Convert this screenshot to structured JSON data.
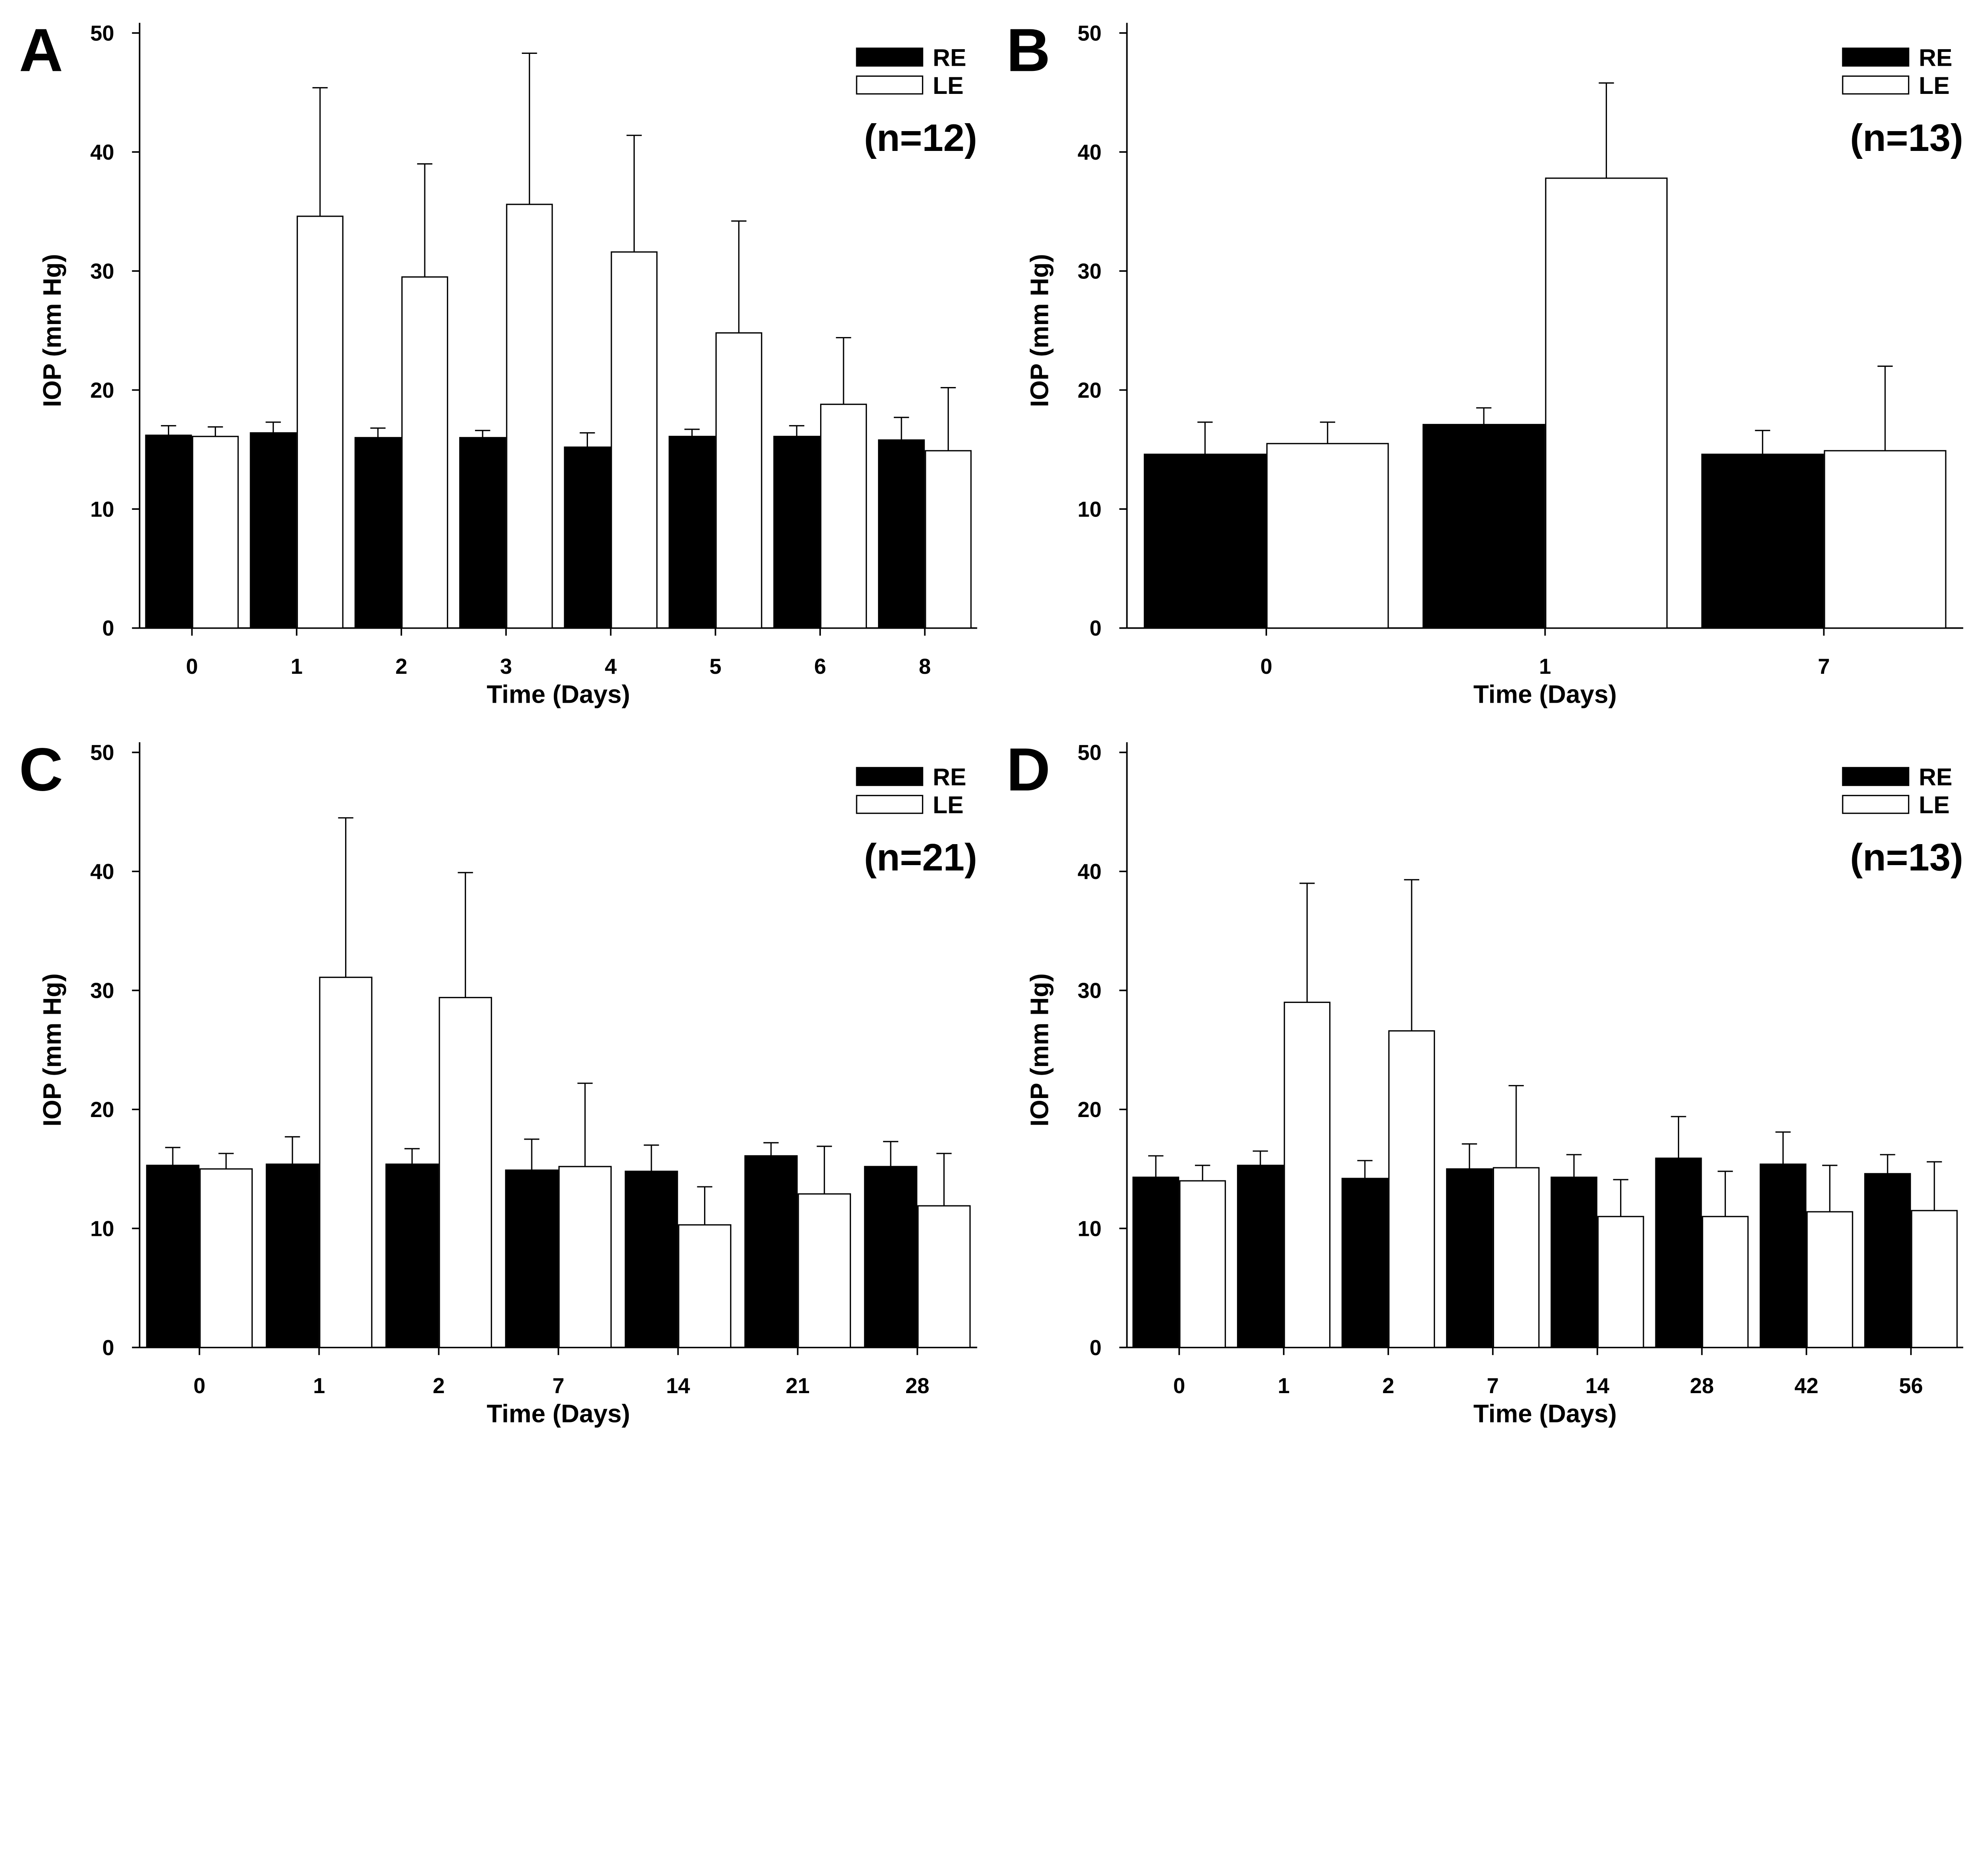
{
  "colors": {
    "RE": "#000000",
    "LE": "#ffffff",
    "axis": "#000000"
  },
  "chart_data": [
    {
      "panel": "A",
      "type": "bar",
      "n_label": "(n=12)",
      "xlabel": "Time (Days)",
      "ylabel": "IOP (mm Hg)",
      "ylim": [
        0,
        50
      ],
      "yticks": [
        0,
        10,
        20,
        30,
        40,
        50
      ],
      "legend_position": "top-right",
      "grid": false,
      "categories": [
        "0",
        "1",
        "2",
        "3",
        "4",
        "5",
        "6",
        "8"
      ],
      "series": [
        {
          "name": "RE",
          "values": [
            16.2,
            16.4,
            16.0,
            16.0,
            15.2,
            16.1,
            16.1,
            15.8
          ],
          "error_upper": [
            17.0,
            17.3,
            16.8,
            16.6,
            16.4,
            16.7,
            17.0,
            17.7
          ]
        },
        {
          "name": "LE",
          "values": [
            16.1,
            34.6,
            29.5,
            35.6,
            31.6,
            24.8,
            18.8,
            14.9
          ],
          "error_upper": [
            16.9,
            45.4,
            39.0,
            48.3,
            41.4,
            34.2,
            24.4,
            20.2
          ]
        }
      ]
    },
    {
      "panel": "B",
      "type": "bar",
      "n_label": "(n=13)",
      "xlabel": "Time (Days)",
      "ylabel": "IOP (mm Hg)",
      "ylim": [
        0,
        50
      ],
      "yticks": [
        0,
        10,
        20,
        30,
        40,
        50
      ],
      "legend_position": "top-right",
      "grid": false,
      "categories": [
        "0",
        "1",
        "7"
      ],
      "series": [
        {
          "name": "RE",
          "values": [
            14.6,
            17.1,
            14.6
          ],
          "error_upper": [
            17.3,
            18.5,
            16.6
          ]
        },
        {
          "name": "LE",
          "values": [
            15.5,
            37.8,
            14.9
          ],
          "error_upper": [
            17.3,
            45.8,
            22.0
          ]
        }
      ]
    },
    {
      "panel": "C",
      "type": "bar",
      "n_label": "(n=21)",
      "xlabel": "Time (Days)",
      "ylabel": "IOP (mm Hg)",
      "ylim": [
        0,
        50
      ],
      "yticks": [
        0,
        10,
        20,
        30,
        40,
        50
      ],
      "legend_position": "top-right",
      "grid": false,
      "categories": [
        "0",
        "1",
        "2",
        "7",
        "14",
        "21",
        "28"
      ],
      "series": [
        {
          "name": "RE",
          "values": [
            15.3,
            15.4,
            15.4,
            14.9,
            14.8,
            16.1,
            15.2
          ],
          "error_upper": [
            16.8,
            17.7,
            16.7,
            17.5,
            17.0,
            17.2,
            17.3
          ]
        },
        {
          "name": "LE",
          "values": [
            15.0,
            31.1,
            29.4,
            15.2,
            10.3,
            12.9,
            11.9
          ],
          "error_upper": [
            16.3,
            44.5,
            39.9,
            22.2,
            13.5,
            16.9,
            16.3
          ]
        }
      ]
    },
    {
      "panel": "D",
      "type": "bar",
      "n_label": "(n=13)",
      "xlabel": "Time (Days)",
      "ylabel": "IOP (mm Hg)",
      "ylim": [
        0,
        50
      ],
      "yticks": [
        0,
        10,
        20,
        30,
        40,
        50
      ],
      "legend_position": "top-right",
      "grid": false,
      "categories": [
        "0",
        "1",
        "2",
        "7",
        "14",
        "28",
        "42",
        "56"
      ],
      "series": [
        {
          "name": "RE",
          "values": [
            14.3,
            15.3,
            14.2,
            15.0,
            14.3,
            15.9,
            15.4,
            14.6
          ],
          "error_upper": [
            16.1,
            16.5,
            15.7,
            17.1,
            16.2,
            19.4,
            18.1,
            16.2
          ]
        },
        {
          "name": "LE",
          "values": [
            14.0,
            29.0,
            26.6,
            15.1,
            11.0,
            11.0,
            11.4,
            11.5
          ],
          "error_upper": [
            15.3,
            39.0,
            39.3,
            22.0,
            14.1,
            14.8,
            15.3,
            15.6
          ]
        }
      ]
    }
  ]
}
